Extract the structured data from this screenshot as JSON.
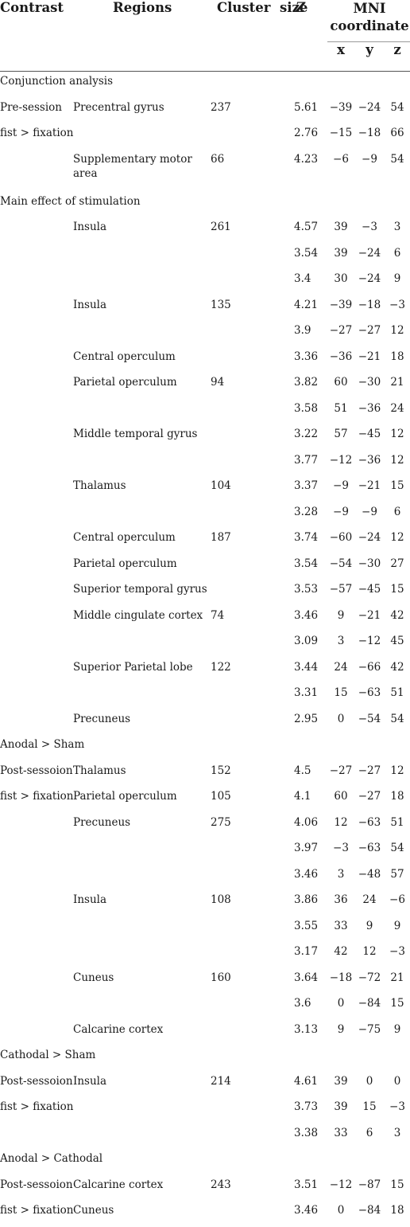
{
  "headers": {
    "contrast": "Contrast",
    "regions": "Regions",
    "cluster_size": "Cluster  size",
    "z": "Z",
    "mni": "MNI coordinate",
    "x": "x",
    "y": "y",
    "zc": "z"
  },
  "rows": [
    {
      "type": "section",
      "label": "Conjunction analysis"
    },
    {
      "contrast": "Pre-session",
      "region": "Precentral gyrus",
      "cluster": "237",
      "z": "5.61",
      "x": "−39",
      "y": "−24",
      "zc": "54"
    },
    {
      "contrast": "fist > fixation",
      "region": "",
      "cluster": "",
      "z": "2.76",
      "x": "−15",
      "y": "−18",
      "zc": "66"
    },
    {
      "contrast": "",
      "region": "Supplementary motor area",
      "cluster": "66",
      "z": "4.23",
      "x": "−6",
      "y": "−9",
      "zc": "54",
      "tall": true
    },
    {
      "type": "section",
      "label": "Main effect of stimulation"
    },
    {
      "contrast": "",
      "region": "Insula",
      "cluster": "261",
      "z": "4.57",
      "x": "39",
      "y": "−3",
      "zc": "3"
    },
    {
      "contrast": "",
      "region": "",
      "cluster": "",
      "z": "3.54",
      "x": "39",
      "y": "−24",
      "zc": "6"
    },
    {
      "contrast": "",
      "region": "",
      "cluster": "",
      "z": "3.4",
      "x": "30",
      "y": "−24",
      "zc": "9"
    },
    {
      "contrast": "",
      "region": "Insula",
      "cluster": "135",
      "z": "4.21",
      "x": "−39",
      "y": "−18",
      "zc": "−3"
    },
    {
      "contrast": "",
      "region": "",
      "cluster": "",
      "z": "3.9",
      "x": "−27",
      "y": "−27",
      "zc": "12"
    },
    {
      "contrast": "",
      "region": "Central operculum",
      "cluster": "",
      "z": "3.36",
      "x": "−36",
      "y": "−21",
      "zc": "18"
    },
    {
      "contrast": "",
      "region": "Parietal operculum",
      "cluster": "94",
      "z": "3.82",
      "x": "60",
      "y": "−30",
      "zc": "21"
    },
    {
      "contrast": "",
      "region": "",
      "cluster": "",
      "z": "3.58",
      "x": "51",
      "y": "−36",
      "zc": "24"
    },
    {
      "contrast": "",
      "region": "Middle temporal gyrus",
      "cluster": "",
      "z": "3.22",
      "x": "57",
      "y": "−45",
      "zc": "12"
    },
    {
      "contrast": "",
      "region": "",
      "cluster": "",
      "z": "3.77",
      "x": "−12",
      "y": "−36",
      "zc": "12"
    },
    {
      "contrast": "",
      "region": "Thalamus",
      "cluster": "104",
      "z": "3.37",
      "x": "−9",
      "y": "−21",
      "zc": "15"
    },
    {
      "contrast": "",
      "region": "",
      "cluster": "",
      "z": "3.28",
      "x": "−9",
      "y": "−9",
      "zc": "6"
    },
    {
      "contrast": "",
      "region": "Central operculum",
      "cluster": "187",
      "z": "3.74",
      "x": "−60",
      "y": "−24",
      "zc": "12"
    },
    {
      "contrast": "",
      "region": "Parietal operculum",
      "cluster": "",
      "z": "3.54",
      "x": "−54",
      "y": "−30",
      "zc": "27"
    },
    {
      "contrast": "",
      "region": "Superior temporal gyrus",
      "cluster": "",
      "z": "3.53",
      "x": "−57",
      "y": "−45",
      "zc": "15"
    },
    {
      "contrast": "",
      "region": "Middle cingulate cortex",
      "cluster": "74",
      "z": "3.46",
      "x": "9",
      "y": "−21",
      "zc": "42"
    },
    {
      "contrast": "",
      "region": "",
      "cluster": "",
      "z": "3.09",
      "x": "3",
      "y": "−12",
      "zc": "45"
    },
    {
      "contrast": "",
      "region": "Superior Parietal lobe",
      "cluster": "122",
      "z": "3.44",
      "x": "24",
      "y": "−66",
      "zc": "42"
    },
    {
      "contrast": "",
      "region": "",
      "cluster": "",
      "z": "3.31",
      "x": "15",
      "y": "−63",
      "zc": "51"
    },
    {
      "contrast": "",
      "region": "Precuneus",
      "cluster": "",
      "z": "2.95",
      "x": "0",
      "y": "−54",
      "zc": "54"
    },
    {
      "type": "section",
      "label": "Anodal > Sham"
    },
    {
      "contrast": "Post-sessoion",
      "region": "Thalamus",
      "cluster": "152",
      "z": "4.5",
      "x": "−27",
      "y": "−27",
      "zc": "12"
    },
    {
      "contrast": "fist > fixation",
      "region": "Parietal operculum",
      "cluster": "105",
      "z": "4.1",
      "x": "60",
      "y": "−27",
      "zc": "18"
    },
    {
      "contrast": "",
      "region": "Precuneus",
      "cluster": "275",
      "z": "4.06",
      "x": "12",
      "y": "−63",
      "zc": "51"
    },
    {
      "contrast": "",
      "region": "",
      "cluster": "",
      "z": "3.97",
      "x": "−3",
      "y": "−63",
      "zc": "54"
    },
    {
      "contrast": "",
      "region": "",
      "cluster": "",
      "z": "3.46",
      "x": "3",
      "y": "−48",
      "zc": "57"
    },
    {
      "contrast": "",
      "region": "Insula",
      "cluster": "108",
      "z": "3.86",
      "x": "36",
      "y": "24",
      "zc": "−6"
    },
    {
      "contrast": "",
      "region": "",
      "cluster": "",
      "z": "3.55",
      "x": "33",
      "y": "9",
      "zc": "9"
    },
    {
      "contrast": "",
      "region": "",
      "cluster": "",
      "z": "3.17",
      "x": "42",
      "y": "12",
      "zc": "−3"
    },
    {
      "contrast": "",
      "region": "Cuneus",
      "cluster": "160",
      "z": "3.64",
      "x": "−18",
      "y": "−72",
      "zc": "21"
    },
    {
      "contrast": "",
      "region": "",
      "cluster": "",
      "z": "3.6",
      "x": "0",
      "y": "−84",
      "zc": "15"
    },
    {
      "contrast": "",
      "region": "Calcarine cortex",
      "cluster": "",
      "z": "3.13",
      "x": "9",
      "y": "−75",
      "zc": "9"
    },
    {
      "type": "section",
      "label": "Cathodal > Sham"
    },
    {
      "contrast": "Post-sessoion",
      "region": "Insula",
      "cluster": "214",
      "z": "4.61",
      "x": "39",
      "y": "0",
      "zc": "0"
    },
    {
      "contrast": "fist > fixation",
      "region": "",
      "cluster": "",
      "z": "3.73",
      "x": "39",
      "y": "15",
      "zc": "−3"
    },
    {
      "contrast": "",
      "region": "",
      "cluster": "",
      "z": "3.38",
      "x": "33",
      "y": "6",
      "zc": "3"
    },
    {
      "type": "section",
      "label": "Anodal > Cathodal"
    },
    {
      "contrast": "Post-sessoion",
      "region": "Calcarine cortex",
      "cluster": "243",
      "z": "3.51",
      "x": "−12",
      "y": "−87",
      "zc": "15"
    },
    {
      "contrast": "fist > fixation",
      "region": "Cuneus",
      "cluster": "",
      "z": "3.46",
      "x": "0",
      "y": "−84",
      "zc": "18"
    }
  ]
}
